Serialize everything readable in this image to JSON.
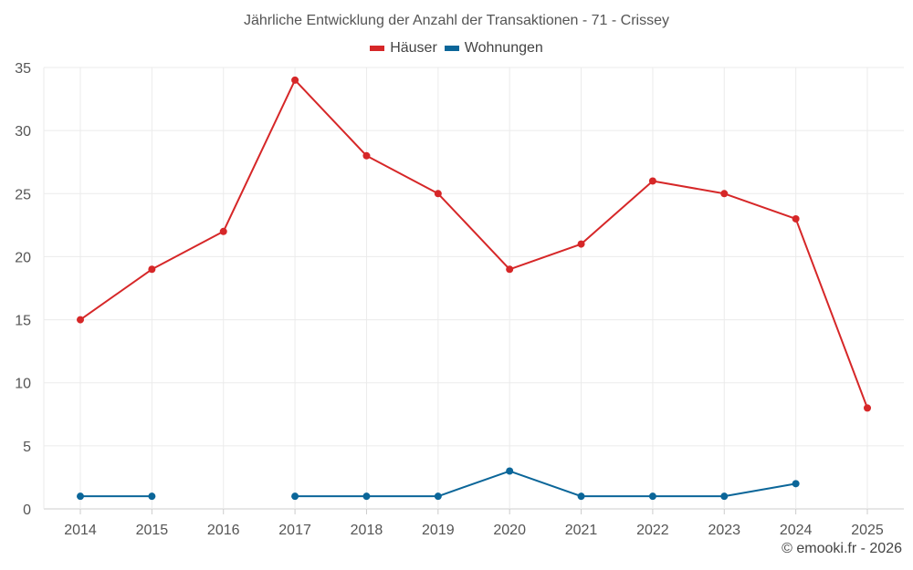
{
  "chart_data": {
    "type": "line",
    "title": "Jährliche Entwicklung der Anzahl der Transaktionen - 71 - Crissey",
    "categories": [
      "2014",
      "2015",
      "2016",
      "2017",
      "2018",
      "2019",
      "2020",
      "2021",
      "2022",
      "2023",
      "2024",
      "2025"
    ],
    "series": [
      {
        "name": "Häuser",
        "color": "#d62728",
        "values": [
          15,
          19,
          22,
          34,
          28,
          25,
          19,
          21,
          26,
          25,
          23,
          8
        ]
      },
      {
        "name": "Wohnungen",
        "color": "#0b6699",
        "values": [
          1,
          1,
          null,
          1,
          1,
          1,
          3,
          1,
          1,
          1,
          2,
          null
        ]
      }
    ],
    "ylim": [
      0,
      35
    ],
    "yticks": [
      0,
      5,
      10,
      15,
      20,
      25,
      30,
      35
    ],
    "grid": true,
    "legend_position": "top-center",
    "xlabel": "",
    "ylabel": ""
  },
  "credit": "© emooki.fr - 2026"
}
